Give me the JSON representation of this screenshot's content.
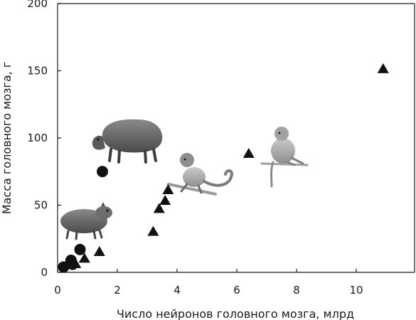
{
  "chart_data": {
    "type": "scatter",
    "title": "",
    "xlabel": "Число нейронов головного мозга, млрд",
    "ylabel": "Масса головного мозга, г",
    "xlim": [
      0,
      12
    ],
    "ylim": [
      0,
      200
    ],
    "xticks": [
      0,
      2,
      4,
      6,
      8,
      10
    ],
    "yticks": [
      0,
      50,
      100,
      150,
      200
    ],
    "grid": false,
    "legend": "none",
    "series": [
      {
        "marker": "circle",
        "color": "#111111",
        "points": [
          {
            "x": 0.2,
            "y": 4
          },
          {
            "x": 0.45,
            "y": 9
          },
          {
            "x": 0.5,
            "y": 6
          },
          {
            "x": 0.75,
            "y": 17
          },
          {
            "x": 1.5,
            "y": 75
          }
        ]
      },
      {
        "marker": "triangle",
        "color": "#111111",
        "points": [
          {
            "x": 0.6,
            "y": 6
          },
          {
            "x": 0.9,
            "y": 10
          },
          {
            "x": 1.4,
            "y": 15
          },
          {
            "x": 3.2,
            "y": 30
          },
          {
            "x": 3.4,
            "y": 47
          },
          {
            "x": 3.6,
            "y": 53
          },
          {
            "x": 3.7,
            "y": 61
          },
          {
            "x": 6.4,
            "y": 88
          },
          {
            "x": 10.9,
            "y": 151
          }
        ]
      }
    ],
    "illustrations": [
      {
        "icon": "agouti-icon",
        "x": 0.95,
        "y": 40
      },
      {
        "icon": "capybara-icon",
        "x": 2.5,
        "y": 112
      },
      {
        "icon": "monkey-icon",
        "x": 4.6,
        "y": 65
      },
      {
        "icon": "macaque-icon",
        "x": 7.7,
        "y": 87
      }
    ]
  }
}
